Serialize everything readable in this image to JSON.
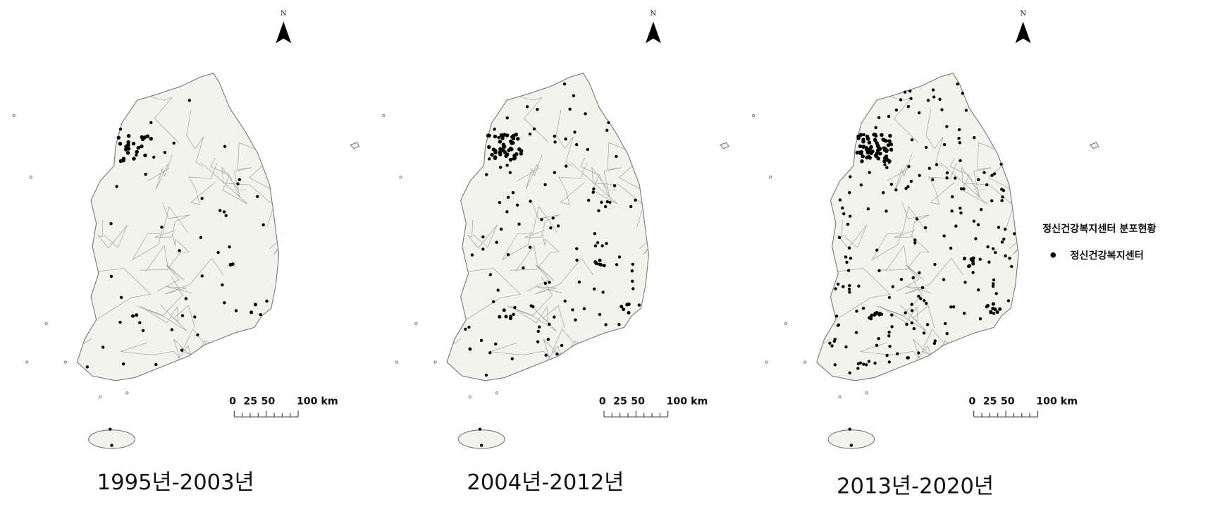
{
  "maps": [
    {
      "caption": "1995년-2003년",
      "north": "N",
      "scale": [
        "0",
        "25",
        "50",
        "100 km"
      ]
    },
    {
      "caption": "2004년-2012년",
      "north": "N",
      "scale": [
        "0",
        "25",
        "50",
        "100 km"
      ]
    },
    {
      "caption": "2013년-2020년",
      "north": "N",
      "scale": [
        "0",
        "25",
        "50",
        "100 km"
      ]
    }
  ],
  "legend": {
    "title": "정신건강복지센터  분포현황",
    "item": "정신건강복지센터"
  }
}
